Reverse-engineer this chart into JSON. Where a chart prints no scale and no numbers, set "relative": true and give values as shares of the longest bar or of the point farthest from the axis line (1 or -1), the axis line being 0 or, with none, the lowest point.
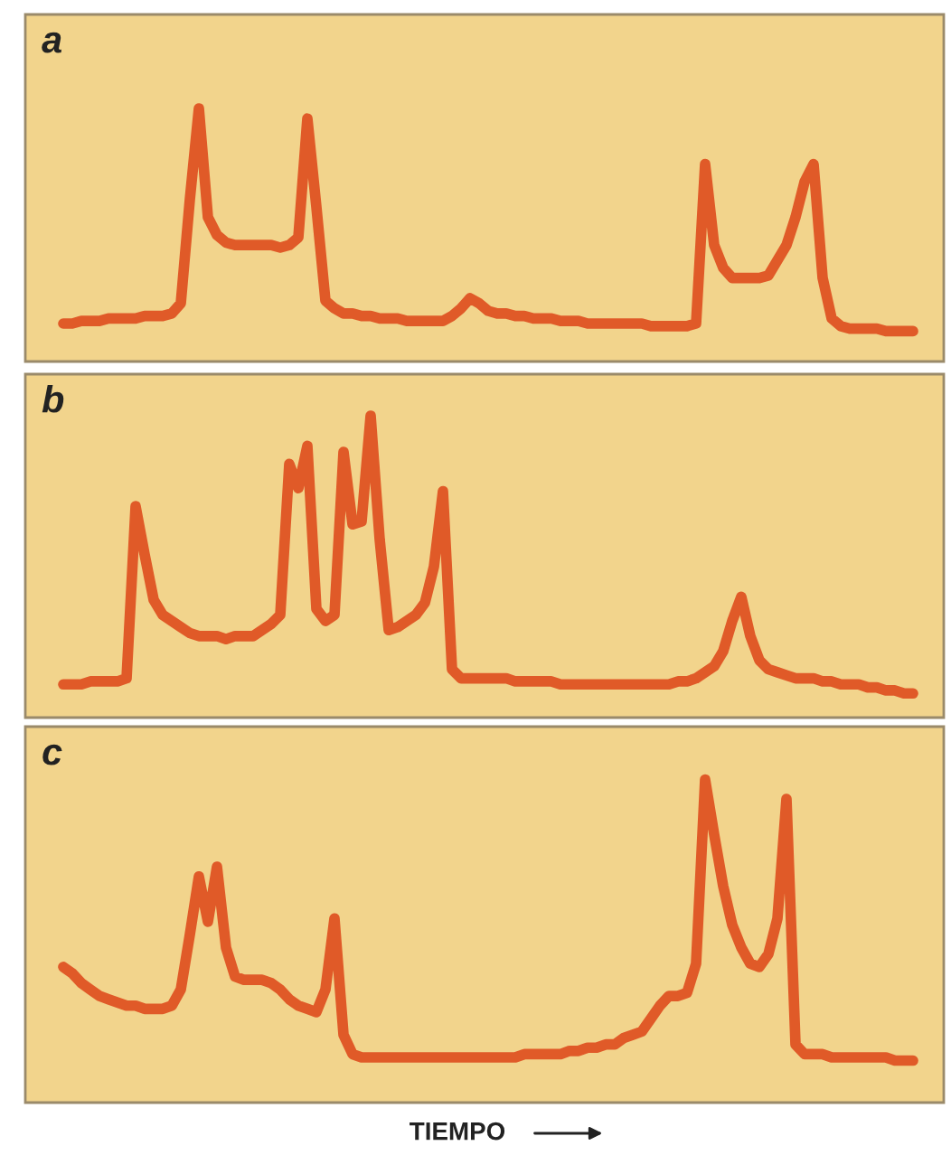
{
  "chart_data": [
    {
      "type": "line",
      "title": "a",
      "relative": true,
      "color": "#e05a28",
      "categories": [
        null,
        null,
        null,
        null,
        null,
        null,
        null,
        null,
        null,
        null,
        null,
        null,
        null,
        null,
        null,
        null,
        null,
        null,
        null,
        null,
        null,
        null,
        null,
        null,
        null,
        null,
        null,
        null,
        null,
        null,
        null,
        null,
        null,
        null,
        null,
        null,
        null,
        null,
        null,
        null,
        null,
        null,
        null,
        null,
        null,
        null,
        null,
        null,
        null,
        null,
        null,
        null,
        null,
        null,
        null,
        null,
        null,
        null,
        null,
        null,
        null,
        null,
        null,
        null,
        null,
        null,
        null,
        null,
        null,
        null,
        null,
        null,
        null,
        null,
        null,
        null,
        null,
        null,
        null,
        null,
        null,
        null,
        null,
        null,
        null,
        null,
        null,
        null,
        null,
        null,
        null,
        null,
        null,
        null,
        null
      ],
      "values": [
        0.15,
        0.15,
        0.16,
        0.16,
        0.16,
        0.17,
        0.17,
        0.17,
        0.17,
        0.18,
        0.18,
        0.18,
        0.19,
        0.23,
        0.64,
        1.0,
        0.57,
        0.5,
        0.47,
        0.46,
        0.46,
        0.46,
        0.46,
        0.46,
        0.45,
        0.46,
        0.49,
        0.96,
        0.61,
        0.24,
        0.21,
        0.19,
        0.19,
        0.18,
        0.18,
        0.17,
        0.17,
        0.17,
        0.16,
        0.16,
        0.16,
        0.16,
        0.16,
        0.18,
        0.21,
        0.25,
        0.23,
        0.2,
        0.19,
        0.19,
        0.18,
        0.18,
        0.17,
        0.17,
        0.17,
        0.16,
        0.16,
        0.16,
        0.15,
        0.15,
        0.15,
        0.15,
        0.15,
        0.15,
        0.15,
        0.14,
        0.14,
        0.14,
        0.14,
        0.14,
        0.15,
        0.78,
        0.46,
        0.37,
        0.33,
        0.33,
        0.33,
        0.33,
        0.34,
        0.4,
        0.46,
        0.57,
        0.71,
        0.78,
        0.33,
        0.17,
        0.14,
        0.13,
        0.13,
        0.13,
        0.13,
        0.12,
        0.12,
        0.12,
        0.12
      ]
    },
    {
      "type": "line",
      "title": "b",
      "relative": true,
      "color": "#e05a28",
      "categories": [
        null,
        null,
        null,
        null,
        null,
        null,
        null,
        null,
        null,
        null,
        null,
        null,
        null,
        null,
        null,
        null,
        null,
        null,
        null,
        null,
        null,
        null,
        null,
        null,
        null,
        null,
        null,
        null,
        null,
        null,
        null,
        null,
        null,
        null,
        null,
        null,
        null,
        null,
        null,
        null,
        null,
        null,
        null,
        null,
        null,
        null,
        null,
        null,
        null,
        null,
        null,
        null,
        null,
        null,
        null,
        null,
        null,
        null,
        null,
        null,
        null,
        null,
        null,
        null,
        null,
        null,
        null,
        null,
        null,
        null,
        null,
        null,
        null,
        null,
        null,
        null,
        null,
        null,
        null,
        null,
        null,
        null,
        null,
        null,
        null,
        null,
        null,
        null,
        null,
        null,
        null,
        null,
        null,
        null,
        null
      ],
      "values": [
        0.11,
        0.11,
        0.11,
        0.12,
        0.12,
        0.12,
        0.12,
        0.13,
        0.7,
        0.54,
        0.39,
        0.34,
        0.32,
        0.3,
        0.28,
        0.27,
        0.27,
        0.27,
        0.26,
        0.27,
        0.27,
        0.27,
        0.29,
        0.31,
        0.34,
        0.84,
        0.76,
        0.9,
        0.36,
        0.32,
        0.34,
        0.88,
        0.64,
        0.65,
        1.0,
        0.59,
        0.29,
        0.3,
        0.32,
        0.34,
        0.38,
        0.5,
        0.75,
        0.16,
        0.13,
        0.13,
        0.13,
        0.13,
        0.13,
        0.13,
        0.12,
        0.12,
        0.12,
        0.12,
        0.12,
        0.11,
        0.11,
        0.11,
        0.11,
        0.11,
        0.11,
        0.11,
        0.11,
        0.11,
        0.11,
        0.11,
        0.11,
        0.11,
        0.12,
        0.12,
        0.13,
        0.15,
        0.17,
        0.22,
        0.32,
        0.4,
        0.27,
        0.19,
        0.16,
        0.15,
        0.14,
        0.13,
        0.13,
        0.13,
        0.12,
        0.12,
        0.11,
        0.11,
        0.11,
        0.1,
        0.1,
        0.09,
        0.09,
        0.08,
        0.08
      ]
    },
    {
      "type": "line",
      "title": "c",
      "xlabel": "TIEMPO",
      "relative": true,
      "color": "#e05a28",
      "categories": [
        null,
        null,
        null,
        null,
        null,
        null,
        null,
        null,
        null,
        null,
        null,
        null,
        null,
        null,
        null,
        null,
        null,
        null,
        null,
        null,
        null,
        null,
        null,
        null,
        null,
        null,
        null,
        null,
        null,
        null,
        null,
        null,
        null,
        null,
        null,
        null,
        null,
        null,
        null,
        null,
        null,
        null,
        null,
        null,
        null,
        null,
        null,
        null,
        null,
        null,
        null,
        null,
        null,
        null,
        null,
        null,
        null,
        null,
        null,
        null,
        null,
        null,
        null,
        null,
        null,
        null,
        null,
        null,
        null,
        null,
        null,
        null,
        null,
        null,
        null,
        null,
        null,
        null,
        null,
        null,
        null,
        null,
        null,
        null,
        null,
        null,
        null,
        null,
        null,
        null,
        null,
        null,
        null,
        null,
        null
      ],
      "values": [
        0.42,
        0.4,
        0.37,
        0.35,
        0.33,
        0.32,
        0.31,
        0.3,
        0.3,
        0.29,
        0.29,
        0.29,
        0.3,
        0.35,
        0.52,
        0.7,
        0.56,
        0.73,
        0.48,
        0.39,
        0.38,
        0.38,
        0.38,
        0.37,
        0.35,
        0.32,
        0.3,
        0.29,
        0.28,
        0.35,
        0.57,
        0.21,
        0.15,
        0.14,
        0.14,
        0.14,
        0.14,
        0.14,
        0.14,
        0.14,
        0.14,
        0.14,
        0.14,
        0.14,
        0.14,
        0.14,
        0.14,
        0.14,
        0.14,
        0.14,
        0.14,
        0.15,
        0.15,
        0.15,
        0.15,
        0.15,
        0.16,
        0.16,
        0.17,
        0.17,
        0.18,
        0.18,
        0.2,
        0.21,
        0.22,
        0.26,
        0.3,
        0.33,
        0.33,
        0.34,
        0.43,
        1.0,
        0.83,
        0.67,
        0.55,
        0.48,
        0.43,
        0.42,
        0.46,
        0.57,
        0.94,
        0.18,
        0.15,
        0.15,
        0.15,
        0.14,
        0.14,
        0.14,
        0.14,
        0.14,
        0.14,
        0.14,
        0.13,
        0.13,
        0.13
      ]
    }
  ]
}
